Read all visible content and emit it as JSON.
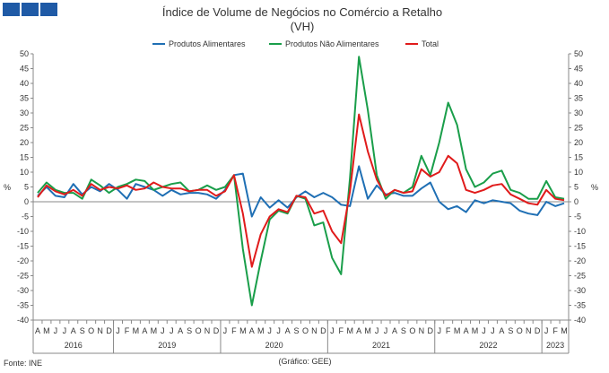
{
  "header": {
    "logo_icon": "ine-logo-icon"
  },
  "footer": {
    "source": "Fonte: INE",
    "credit": "(Gráfico: GEE)"
  },
  "chart_data": {
    "type": "line",
    "title": "Índice de Volume de Negócios no Comércio a Retalho",
    "subtitle": "(VH)",
    "ylabel_left": "%",
    "ylabel_right": "%",
    "ylim": [
      -40,
      50
    ],
    "yticks": [
      -40,
      -35,
      -30,
      -25,
      -20,
      -15,
      -10,
      -5,
      0,
      5,
      10,
      15,
      20,
      25,
      30,
      35,
      40,
      45,
      50
    ],
    "grid": false,
    "legend_position": "top",
    "month_labels": [
      "A",
      "M",
      "J",
      "J",
      "A",
      "S",
      "O",
      "N",
      "D",
      "J",
      "F",
      "M",
      "A",
      "M",
      "J",
      "J",
      "A",
      "S",
      "O",
      "N",
      "D",
      "J",
      "F",
      "M",
      "A",
      "M",
      "J",
      "J",
      "A",
      "S",
      "O",
      "N",
      "D",
      "J",
      "F",
      "M",
      "A",
      "M",
      "J",
      "J",
      "A",
      "S",
      "O",
      "N",
      "D",
      "J",
      "F",
      "M",
      "A",
      "M",
      "J",
      "J",
      "A",
      "S",
      "O",
      "N",
      "D",
      "J",
      "F",
      "M"
    ],
    "years": [
      {
        "label": "2016",
        "start": 0,
        "end": 9
      },
      {
        "label": "2019",
        "start": 9,
        "end": 21
      },
      {
        "label": "2020",
        "start": 21,
        "end": 33
      },
      {
        "label": "2021",
        "start": 33,
        "end": 45
      },
      {
        "label": "2022",
        "start": 45,
        "end": 57
      },
      {
        "label": "2023",
        "start": 57,
        "end": 60
      }
    ],
    "series": [
      {
        "name": "Produtos Alimentares",
        "color": "#1f6fb4",
        "values": [
          2,
          5,
          2,
          1.5,
          6,
          2.5,
          5,
          3.5,
          6,
          4,
          1,
          6,
          5,
          4,
          2,
          4,
          2.5,
          3,
          3,
          2.5,
          1,
          4,
          9,
          9.5,
          -5,
          1.5,
          -2,
          0.5,
          -2,
          1.5,
          3.5,
          1.5,
          3,
          1.5,
          -1,
          -1.5,
          12,
          1,
          5.5,
          2.5,
          3,
          2,
          2,
          4.5,
          6.5,
          0,
          -2.5,
          -1.5,
          -3.5,
          0.5,
          -0.5,
          0.5,
          0,
          -0.5,
          -3,
          -4,
          -4.5,
          0,
          -1.5,
          -0.5
        ]
      },
      {
        "name": "Produtos Não Alimentares",
        "color": "#1a9e4a",
        "values": [
          3,
          6.5,
          4,
          3,
          3,
          1,
          7.5,
          5.5,
          3,
          5,
          6,
          7.5,
          7,
          4,
          5,
          6,
          6.5,
          3.5,
          4,
          5.5,
          4,
          5,
          9,
          -16,
          -35,
          -20,
          -6,
          -3,
          -4,
          2,
          1,
          -8,
          -7,
          -19,
          -24.5,
          8,
          49,
          31,
          9,
          1,
          4,
          3,
          5,
          15.5,
          9,
          20,
          33.5,
          26,
          11,
          5,
          6.5,
          9.5,
          10.5,
          4,
          3,
          1,
          1,
          7,
          1.5,
          1
        ]
      },
      {
        "name": "Total",
        "color": "#e01b1b",
        "values": [
          1.5,
          5.5,
          3.5,
          2.5,
          4,
          2,
          6,
          4,
          5,
          4.5,
          5.5,
          4,
          4.5,
          6.5,
          5,
          4.5,
          4.5,
          3.5,
          4,
          4,
          2,
          3.5,
          9,
          -4,
          -22,
          -11,
          -5,
          -2.5,
          -3.5,
          2,
          1.5,
          -4,
          -3,
          -10,
          -14,
          3.5,
          29.5,
          17,
          7.5,
          2,
          4,
          3,
          3.5,
          11,
          8.5,
          10,
          15.5,
          13,
          4,
          3,
          4,
          5.5,
          6,
          2.5,
          1,
          -0.5,
          -1,
          4,
          1,
          0.5
        ]
      }
    ]
  }
}
